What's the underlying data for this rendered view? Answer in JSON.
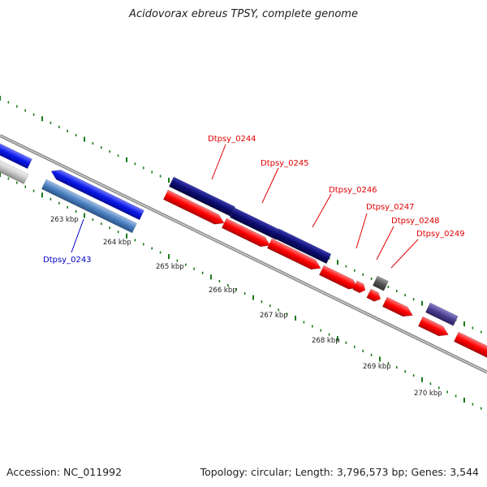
{
  "title": "Acidovorax ebreus TPSY, complete genome",
  "footer": {
    "accession": "Accession: NC_011992",
    "summary": "Topology: circular; Length: 3,796,573 bp; Genes: 3,544"
  },
  "colors": {
    "cds_forward_blue": "#0a18e8",
    "cds_steelblue": "#4a7fbf",
    "cds_navy": "#0c0c70",
    "cds_red": "#ff0000",
    "cds_purple": "#4a3f8f",
    "cds_grey": "#555555",
    "backbone": "#888888",
    "tick": "#1a7a1a",
    "label_red": "#e00000",
    "label_blue": "#0000c8"
  },
  "scale": {
    "kbp_labels": [
      "263 kbp",
      "264 kbp",
      "265 kbp",
      "266 kbp",
      "267 kbp",
      "268 kbp",
      "269 kbp",
      "270 kbp"
    ]
  },
  "gene_labels": [
    {
      "id": "Dtpsy_0243",
      "color": "blue"
    },
    {
      "id": "Dtpsy_0244",
      "color": "red"
    },
    {
      "id": "Dtpsy_0245",
      "color": "red"
    },
    {
      "id": "Dtpsy_0246",
      "color": "red"
    },
    {
      "id": "Dtpsy_0247",
      "color": "red"
    },
    {
      "id": "Dtpsy_0248",
      "color": "red"
    },
    {
      "id": "Dtpsy_0249",
      "color": "red"
    }
  ]
}
